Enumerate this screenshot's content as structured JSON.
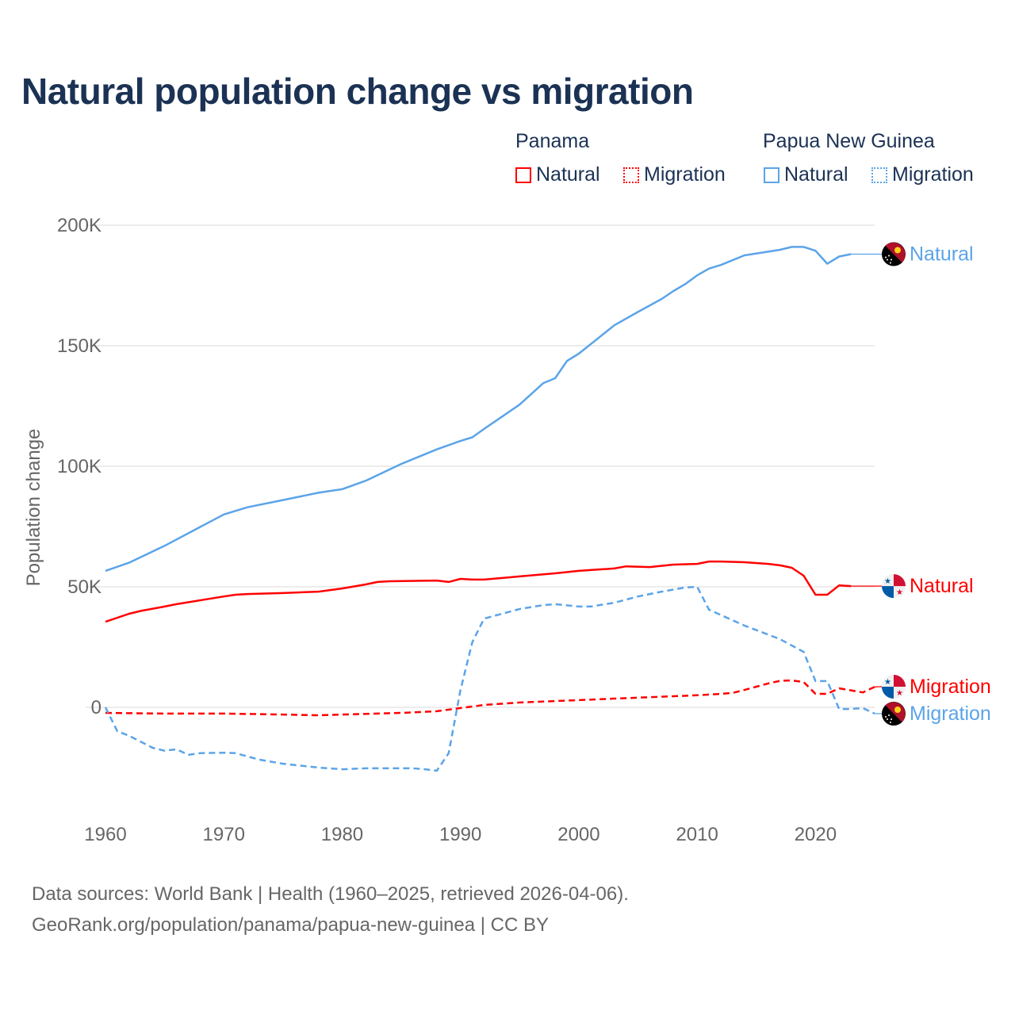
{
  "chart_data": {
    "type": "line",
    "title": "Natural population change vs migration",
    "ylabel": "Population change",
    "xlabel": "",
    "xlim": [
      1960,
      2025
    ],
    "ylim": [
      -40000,
      200000
    ],
    "x_ticks": [
      1960,
      1970,
      1980,
      1990,
      2000,
      2010,
      2020
    ],
    "x_tick_labels": [
      "1960",
      "1970",
      "1980",
      "1990",
      "2000",
      "2010",
      "2020"
    ],
    "y_ticks": [
      0,
      50000,
      100000,
      150000,
      200000
    ],
    "y_tick_labels": [
      "0",
      "50K",
      "100K",
      "150K",
      "200K"
    ],
    "grid": true,
    "legend": {
      "placement": "top-right",
      "groups": [
        {
          "title": "Panama",
          "items": [
            {
              "label": "Natural",
              "style": "solid",
              "color": "#ff0000"
            },
            {
              "label": "Migration",
              "style": "dotted",
              "color": "#ff0000"
            }
          ]
        },
        {
          "title": "Papua New Guinea",
          "items": [
            {
              "label": "Natural",
              "style": "solid",
              "color": "#5ba4e8"
            },
            {
              "label": "Migration",
              "style": "dotted",
              "color": "#5ba4e8"
            }
          ]
        }
      ]
    },
    "series": [
      {
        "name": "Papua New Guinea Natural",
        "end_label": "Natural",
        "country": "png",
        "color": "#5ba4e8",
        "dash": false,
        "x": [
          1960,
          1962,
          1965,
          1970,
          1972,
          1975,
          1978,
          1980,
          1982,
          1985,
          1988,
          1990,
          1991,
          1992,
          1995,
          1997,
          1998,
          1999,
          2000,
          2003,
          2005,
          2007,
          2008,
          2009,
          2010,
          2011,
          2012,
          2014,
          2016,
          2017,
          2018,
          2019,
          2020,
          2021,
          2022,
          2023
        ],
        "values": [
          56600,
          60000,
          67000,
          80000,
          83000,
          86000,
          89000,
          90500,
          94000,
          101000,
          107000,
          110500,
          112000,
          115500,
          125600,
          134500,
          136500,
          143700,
          146700,
          158500,
          164000,
          169400,
          172700,
          175600,
          179200,
          182000,
          183500,
          187500,
          189000,
          189800,
          191000,
          191000,
          189400,
          184000,
          187000,
          188000
        ]
      },
      {
        "name": "Panama Natural",
        "end_label": "Natural",
        "country": "panama",
        "color": "#ff0000",
        "dash": false,
        "x": [
          1960,
          1962,
          1963,
          1965,
          1966,
          1970,
          1971,
          1972,
          1975,
          1978,
          1980,
          1982,
          1983,
          1984,
          1988,
          1989,
          1990,
          1991,
          1992,
          1995,
          1998,
          2000,
          2003,
          2004,
          2006,
          2008,
          2010,
          2011,
          2012,
          2014,
          2016,
          2017,
          2018,
          2019,
          2020,
          2021,
          2022,
          2023
        ],
        "values": [
          35500,
          38800,
          40000,
          41800,
          42800,
          46000,
          46700,
          47000,
          47400,
          48000,
          49300,
          51000,
          52000,
          52300,
          52600,
          52000,
          53300,
          53000,
          53000,
          54300,
          55600,
          56600,
          57600,
          58500,
          58200,
          59200,
          59500,
          60500,
          60500,
          60200,
          59500,
          58900,
          57900,
          54600,
          46700,
          46700,
          50600,
          50300
        ]
      },
      {
        "name": "Panama Migration",
        "end_label": "Migration",
        "country": "panama",
        "color": "#ff0000",
        "dash": true,
        "x": [
          1960,
          1965,
          1970,
          1975,
          1978,
          1985,
          1988,
          1990,
          1992,
          1995,
          2000,
          2005,
          2010,
          2012,
          2013,
          2014,
          2016,
          2017,
          2018,
          2019,
          2020,
          2021,
          2022,
          2024,
          2025
        ],
        "values": [
          -2300,
          -2600,
          -2600,
          -3000,
          -3300,
          -2300,
          -1600,
          -300,
          1000,
          2000,
          3000,
          4000,
          5000,
          5600,
          6000,
          7200,
          9900,
          11000,
          11200,
          10500,
          5600,
          5600,
          7900,
          6200,
          8500
        ]
      },
      {
        "name": "Papua New Guinea Migration",
        "end_label": "Migration",
        "country": "png",
        "color": "#5ba4e8",
        "dash": true,
        "x": [
          1960,
          1961,
          1962,
          1964,
          1965,
          1966,
          1967,
          1968,
          1970,
          1971,
          1973,
          1975,
          1978,
          1980,
          1982,
          1986,
          1987,
          1988,
          1989,
          1990,
          1991,
          1992,
          1995,
          1997,
          1998,
          2000,
          2001,
          2003,
          2005,
          2007,
          2009,
          2010,
          2011,
          2014,
          2017,
          2019,
          2020,
          2021,
          2022,
          2023,
          2024,
          2025
        ],
        "values": [
          0,
          -9900,
          -11800,
          -16800,
          -18000,
          -17400,
          -19700,
          -19000,
          -18800,
          -19000,
          -21700,
          -23400,
          -25000,
          -25700,
          -25300,
          -25300,
          -25700,
          -26300,
          -19000,
          7200,
          27000,
          36800,
          40800,
          42400,
          42800,
          41800,
          41800,
          43400,
          46000,
          48000,
          49700,
          50000,
          40500,
          33900,
          28300,
          23000,
          10900,
          10900,
          -700,
          -700,
          -300,
          -2600
        ]
      }
    ]
  },
  "footer": {
    "line1": "Data sources: World Bank | Health (1960–2025, retrieved 2026-04-06).",
    "line2": "GeoRank.org/population/panama/papua-new-guinea | CC BY"
  }
}
